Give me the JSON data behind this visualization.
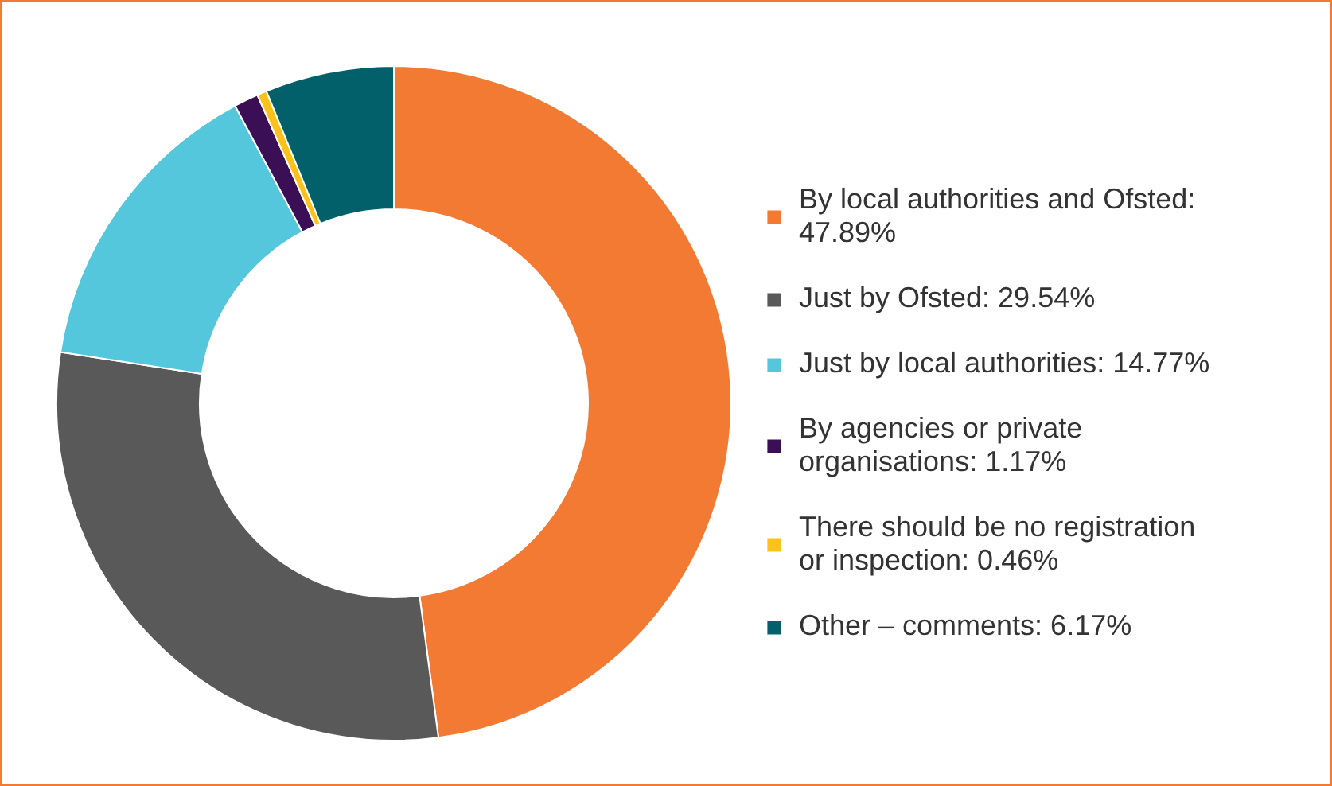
{
  "chart_data": {
    "type": "donut",
    "categories": [
      "By local authorities and Ofsted: 47.89%",
      "Just by Ofsted: 29.54%",
      "Just by local authorities: 14.77%",
      "By agencies or private organisations: 1.17%",
      "There should be no registration or inspection: 0.46%",
      "Other – comments: 6.17%"
    ],
    "values": [
      47.89,
      29.54,
      14.77,
      1.17,
      0.46,
      6.17
    ],
    "colors": [
      "#f37a32",
      "#595959",
      "#54c7dc",
      "#3b0f55",
      "#fcc21a",
      "#02606a"
    ],
    "legend": "right"
  }
}
